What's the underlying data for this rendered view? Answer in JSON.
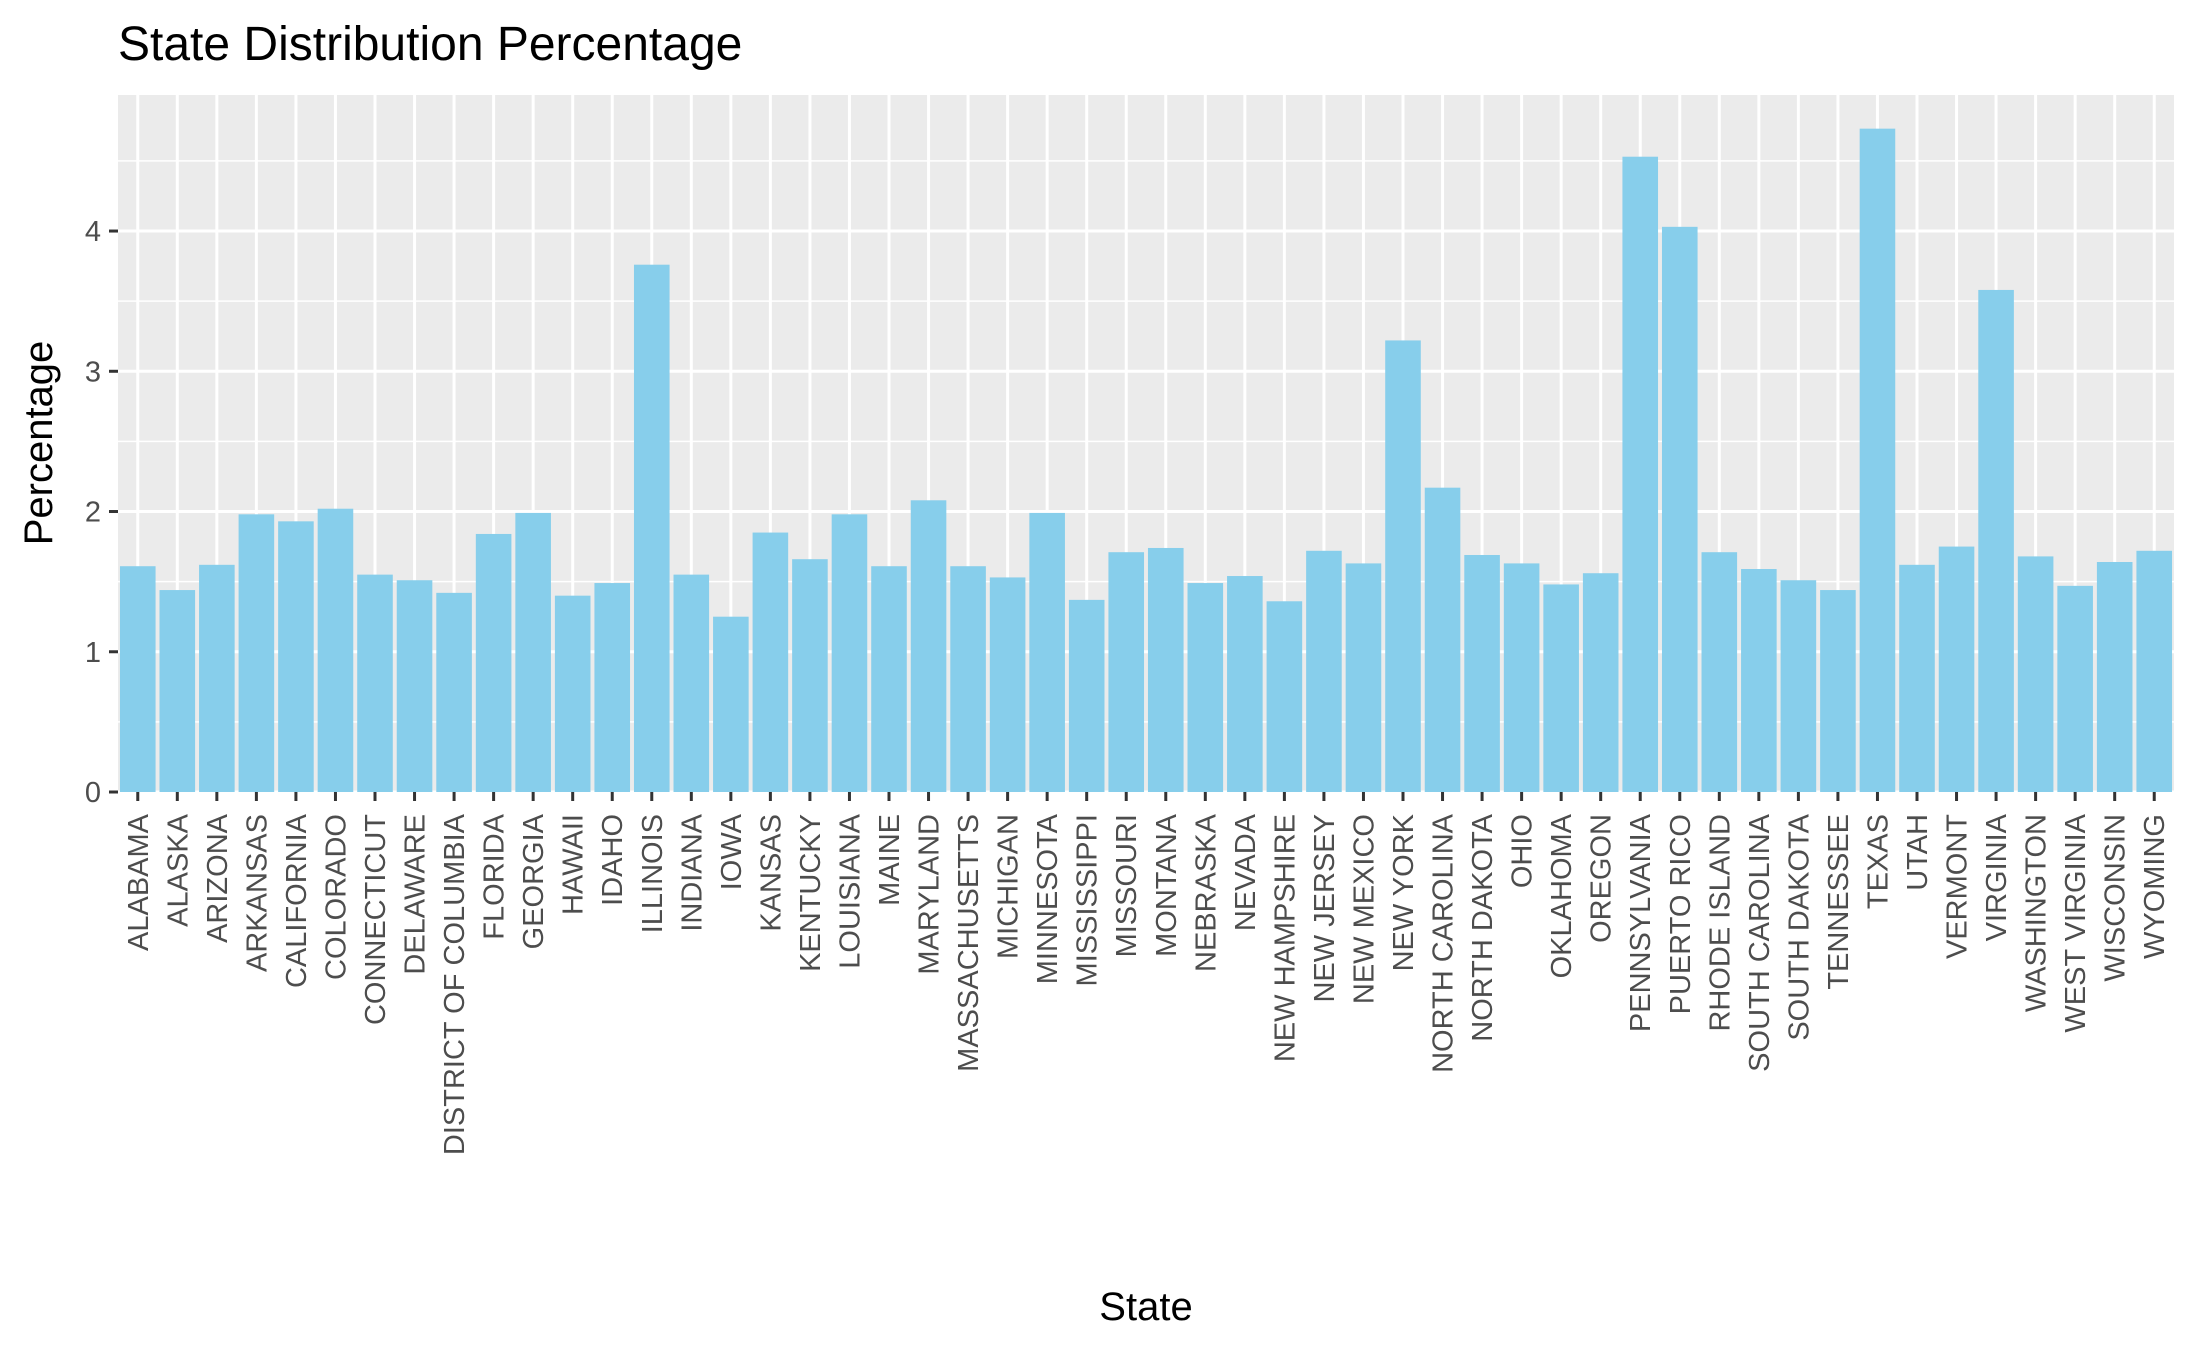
{
  "chart_data": {
    "type": "bar",
    "title": "State Distribution Percentage",
    "xlabel": "State",
    "ylabel": "Percentage",
    "ylim": [
      0,
      4.97
    ],
    "yticks": [
      0,
      1,
      2,
      3,
      4
    ],
    "grid": true,
    "bar_color": "#87ceeb",
    "panel_color": "#ebebeb",
    "categories": [
      "ALABAMA",
      "ALASKA",
      "ARIZONA",
      "ARKANSAS",
      "CALIFORNIA",
      "COLORADO",
      "CONNECTICUT",
      "DELAWARE",
      "DISTRICT OF COLUMBIA",
      "FLORIDA",
      "GEORGIA",
      "HAWAII",
      "IDAHO",
      "ILLINOIS",
      "INDIANA",
      "IOWA",
      "KANSAS",
      "KENTUCKY",
      "LOUISIANA",
      "MAINE",
      "MARYLAND",
      "MASSACHUSETTS",
      "MICHIGAN",
      "MINNESOTA",
      "MISSISSIPPI",
      "MISSOURI",
      "MONTANA",
      "NEBRASKA",
      "NEVADA",
      "NEW HAMPSHIRE",
      "NEW JERSEY",
      "NEW MEXICO",
      "NEW YORK",
      "NORTH CAROLINA",
      "NORTH DAKOTA",
      "OHIO",
      "OKLAHOMA",
      "OREGON",
      "PENNSYLVANIA",
      "PUERTO RICO",
      "RHODE ISLAND",
      "SOUTH CAROLINA",
      "SOUTH DAKOTA",
      "TENNESSEE",
      "TEXAS",
      "UTAH",
      "VERMONT",
      "VIRGINIA",
      "WASHINGTON",
      "WEST VIRGINIA",
      "WISCONSIN",
      "WYOMING"
    ],
    "values": [
      1.61,
      1.44,
      1.62,
      1.98,
      1.93,
      2.02,
      1.55,
      1.51,
      1.42,
      1.84,
      1.99,
      1.4,
      1.49,
      3.76,
      1.55,
      1.25,
      1.85,
      1.66,
      1.98,
      1.61,
      2.08,
      1.61,
      1.53,
      1.99,
      1.37,
      1.71,
      1.74,
      1.49,
      1.54,
      1.36,
      1.72,
      1.63,
      3.22,
      2.17,
      1.69,
      1.63,
      1.48,
      1.56,
      4.53,
      4.03,
      1.71,
      1.59,
      1.51,
      1.44,
      4.73,
      1.62,
      1.75,
      3.58,
      1.68,
      1.47,
      1.64,
      1.72
    ]
  }
}
